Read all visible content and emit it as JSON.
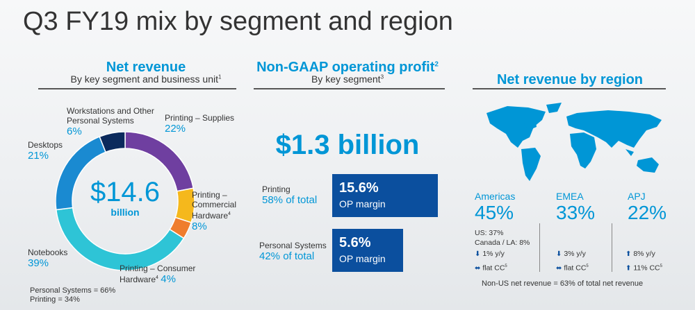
{
  "title": "Q3 FY19 mix by segment and region",
  "net_revenue": {
    "heading": "Net revenue",
    "subheading": "By key segment and business unit",
    "subheading_sup": "1",
    "center_value": "$14.6",
    "center_unit": "billion",
    "footnote_ps": "Personal Systems = 66%",
    "footnote_printing": "Printing = 34%"
  },
  "chart_data": {
    "type": "pie",
    "title": "",
    "slices": [
      {
        "label": "Printing – Supplies",
        "value": 22,
        "pct_label": "22%",
        "color": "#6f3fa0"
      },
      {
        "label": "Printing – Commercial Hardware",
        "sup": "4",
        "value": 8,
        "pct_label": "8%",
        "color": "#f5b81c"
      },
      {
        "label": "Printing – Consumer Hardware",
        "sup": "4",
        "value": 4,
        "pct_label": "4%",
        "color": "#ef7d2e"
      },
      {
        "label": "Notebooks",
        "value": 39,
        "pct_label": "39%",
        "color": "#2ec4d6"
      },
      {
        "label": "Desktops",
        "value": 21,
        "pct_label": "21%",
        "color": "#1a8ad1"
      },
      {
        "label": "Workstations and Other Personal Systems",
        "value": 6,
        "pct_label": "6%",
        "color": "#0b2a5c"
      }
    ]
  },
  "op_profit": {
    "heading": "Non-GAAP operating profit",
    "heading_sup": "2",
    "subheading": "By key segment",
    "subheading_sup": "3",
    "total": "$1.3 billion",
    "segments": [
      {
        "name": "Printing",
        "share": "58% of total",
        "margin_value": "15.6%",
        "margin_label": "OP margin",
        "margin": 15.6
      },
      {
        "name": "Personal Systems",
        "share": "42% of total",
        "margin_value": "5.6%",
        "margin_label": "OP margin",
        "margin": 5.6
      }
    ]
  },
  "regions": {
    "heading": "Net revenue by region",
    "items": [
      {
        "name": "Americas",
        "pct": "45%",
        "details": [
          "US: 37%",
          "Canada / LA: 8%"
        ],
        "yy": "1% y/y",
        "cc": "flat CC",
        "cc_sup": "5"
      },
      {
        "name": "EMEA",
        "pct": "33%",
        "details": [],
        "yy": "3% y/y",
        "cc": "flat CC",
        "cc_sup": "5"
      },
      {
        "name": "APJ",
        "pct": "22%",
        "details": [],
        "yy": "8% y/y",
        "cc": "11% CC",
        "cc_sup": "5"
      }
    ],
    "footnote": "Non-US net revenue = 63% of total net revenue"
  },
  "colors": {
    "accent": "#0096d6",
    "navy": "#0b4f9e"
  }
}
